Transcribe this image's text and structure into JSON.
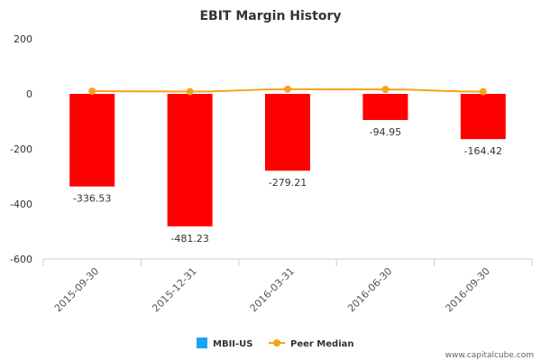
{
  "chart_data": {
    "type": "bar",
    "title": "EBIT Margin History",
    "xlabel": "",
    "ylabel": "",
    "categories": [
      "2015-09-30",
      "2015-12-31",
      "2016-03-31",
      "2016-06-30",
      "2016-09-30"
    ],
    "ylim": [
      -600,
      200
    ],
    "yticks": [
      200,
      0,
      -200,
      -400,
      -600
    ],
    "series": [
      {
        "name": "MBII-US",
        "type": "bar",
        "values": [
          -336.53,
          -481.23,
          -279.21,
          -94.95,
          -164.42
        ],
        "data_labels": [
          "-336.53",
          "-481.23",
          "-279.21",
          "-94.95",
          "-164.42"
        ],
        "bar_color": "#ff0000",
        "legend_color": "#1aa3f0"
      },
      {
        "name": "Peer Median",
        "type": "line",
        "values": [
          10,
          8,
          17,
          16,
          8
        ],
        "color": "#f7a21b"
      }
    ],
    "legend_position": "bottom",
    "grid": false
  },
  "footer": "www.capitalcube.com"
}
